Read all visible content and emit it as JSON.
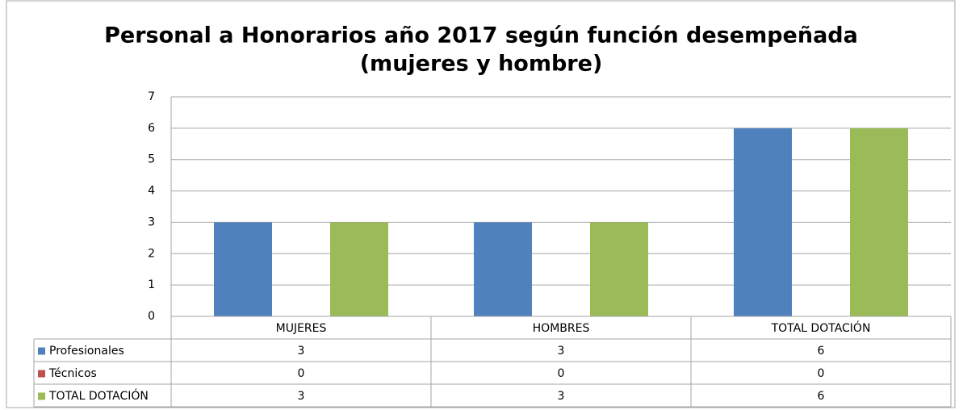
{
  "chart_data": {
    "type": "bar",
    "title_lines": [
      "Personal a Honorarios año 2017 según función desempeñada",
      "(mujeres y hombre)"
    ],
    "categories": [
      "MUJERES",
      "HOMBRES",
      "TOTAL DOTACIÓN"
    ],
    "series": [
      {
        "name": "Profesionales",
        "color": "#4f81bd",
        "values": [
          3,
          3,
          6
        ]
      },
      {
        "name": "Técnicos",
        "color": "#c0504d",
        "values": [
          0,
          0,
          0
        ]
      },
      {
        "name": "TOTAL DOTACIÓN",
        "color": "#9bbb59",
        "values": [
          3,
          3,
          6
        ]
      }
    ],
    "ylim": [
      0,
      7
    ],
    "yticks": [
      0,
      1,
      2,
      3,
      4,
      5,
      6,
      7
    ],
    "grid": true,
    "data_table": true
  }
}
